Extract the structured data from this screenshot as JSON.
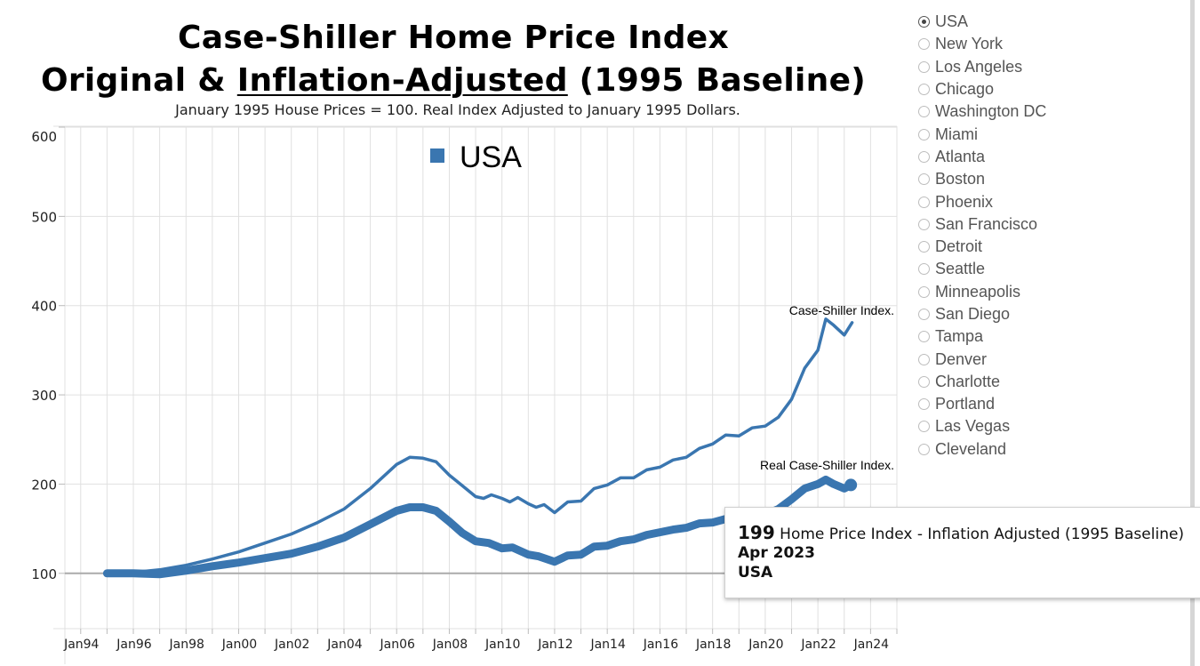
{
  "header": {
    "title_line1": "Case-Shiller Home Price Index",
    "title_line2_prefix": "Original & ",
    "title_line2_underlined": "Inflation-Adjusted",
    "title_line2_suffix": " (1995 Baseline)",
    "subtitle": "January 1995 House Prices = 100. Real Index Adjusted to January 1995 Dollars."
  },
  "colors": {
    "series": "#3a76b0",
    "grid": "#e0e0e0",
    "baseline": "#aaaaaa"
  },
  "region_selector": {
    "selected": "USA",
    "options": [
      "USA",
      "New York",
      "Los Angeles",
      "Chicago",
      "Washington DC",
      "Miami",
      "Atlanta",
      "Boston",
      "Phoenix",
      "San Francisco",
      "Detroit",
      "Seattle",
      "Minneapolis",
      "San Diego",
      "Tampa",
      "Denver",
      "Charlotte",
      "Portland",
      "Las Vegas",
      "Cleveland"
    ]
  },
  "tooltip": {
    "value": "199",
    "description": "Home Price Index - Inflation Adjusted (1995 Baseline)",
    "date": "Apr 2023",
    "region": "USA"
  },
  "chart_data": {
    "type": "line",
    "title": "Case-Shiller Home Price Index Original & Inflation-Adjusted (1995 Baseline)",
    "subtitle": "January 1995 House Prices = 100. Real Index Adjusted to January 1995 Dollars.",
    "xlabel": "",
    "ylabel": "",
    "xlim": [
      1993.4,
      2025.0
    ],
    "ylim": [
      38,
      601
    ],
    "x_ticks": [
      1994,
      1996,
      1998,
      2000,
      2002,
      2004,
      2006,
      2008,
      2010,
      2012,
      2014,
      2016,
      2018,
      2020,
      2022,
      2024
    ],
    "x_tick_labels": [
      "Jan94",
      "Jan96",
      "Jan98",
      "Jan00",
      "Jan02",
      "Jan04",
      "Jan06",
      "Jan08",
      "Jan10",
      "Jan12",
      "Jan14",
      "Jan16",
      "Jan18",
      "Jan20",
      "Jan22",
      "Jan24"
    ],
    "x_minor_grid_every_year": true,
    "y_ticks": [
      100,
      200,
      300,
      400,
      500,
      600
    ],
    "y_tick_labels": [
      "100",
      "200",
      "300",
      "400",
      "500",
      "600"
    ],
    "grid": true,
    "reference_line": 100,
    "legend": {
      "position": "top-center",
      "entries": [
        "USA"
      ]
    },
    "series": [
      {
        "name": "Case-Shiller Index.",
        "style": "thin",
        "x": [
          1995.0,
          1996.0,
          1997.0,
          1998.0,
          1999.0,
          2000.0,
          2001.0,
          2002.0,
          2003.0,
          2004.0,
          2005.0,
          2006.0,
          2006.5,
          2007.0,
          2007.5,
          2008.0,
          2008.5,
          2009.0,
          2009.3,
          2009.6,
          2010.0,
          2010.3,
          2010.6,
          2011.0,
          2011.3,
          2011.6,
          2012.0,
          2012.5,
          2013.0,
          2013.5,
          2014.0,
          2014.5,
          2015.0,
          2015.5,
          2016.0,
          2016.5,
          2017.0,
          2017.5,
          2018.0,
          2018.5,
          2019.0,
          2019.5,
          2020.0,
          2020.5,
          2021.0,
          2021.5,
          2022.0,
          2022.3,
          2022.6,
          2023.0,
          2023.3
        ],
        "values": [
          100,
          101,
          104,
          109,
          116,
          124,
          134,
          144,
          157,
          172,
          195,
          222,
          230,
          229,
          225,
          210,
          198,
          186,
          184,
          188,
          184,
          180,
          185,
          178,
          174,
          177,
          168,
          180,
          181,
          195,
          199,
          207,
          207,
          216,
          219,
          227,
          230,
          240,
          245,
          255,
          254,
          263,
          265,
          275,
          295,
          330,
          350,
          385,
          378,
          367,
          381
        ]
      },
      {
        "name": "Real Case-Shiller Index.",
        "style": "thick",
        "x": [
          1995.0,
          1996.0,
          1997.0,
          1998.0,
          1999.0,
          2000.0,
          2001.0,
          2002.0,
          2003.0,
          2004.0,
          2005.0,
          2006.0,
          2006.5,
          2007.0,
          2007.5,
          2008.0,
          2008.5,
          2009.0,
          2009.5,
          2010.0,
          2010.4,
          2011.0,
          2011.4,
          2012.0,
          2012.5,
          2013.0,
          2013.5,
          2014.0,
          2014.5,
          2015.0,
          2015.5,
          2016.0,
          2016.5,
          2017.0,
          2017.5,
          2018.0,
          2018.5,
          2019.0,
          2019.5,
          2020.0,
          2020.5,
          2021.0,
          2021.5,
          2022.0,
          2022.3,
          2022.6,
          2023.0,
          2023.25
        ],
        "values": [
          100,
          100,
          99,
          103,
          108,
          112,
          117,
          122,
          130,
          140,
          155,
          170,
          174,
          174,
          170,
          158,
          145,
          136,
          134,
          128,
          129,
          121,
          119,
          113,
          120,
          121,
          130,
          131,
          136,
          138,
          143,
          146,
          149,
          151,
          156,
          157,
          161,
          160,
          164,
          166,
          172,
          183,
          195,
          200,
          205,
          200,
          195,
          199
        ]
      }
    ],
    "annotations": [
      "Case-Shiller Index.",
      "Real Case-Shiller Index."
    ]
  }
}
